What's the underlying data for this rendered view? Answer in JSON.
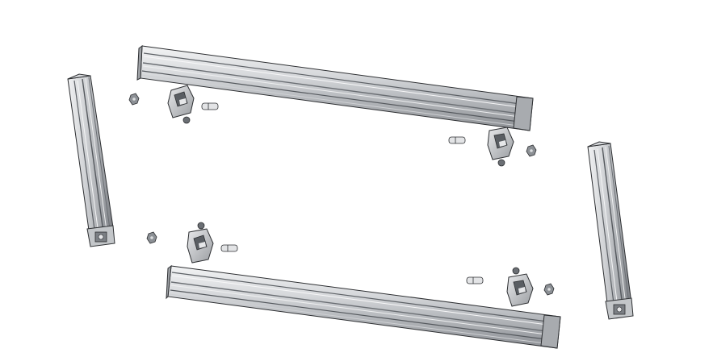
{
  "diagram": {
    "type": "exploded-assembly",
    "palette": {
      "profile_light": "#e3e4e6",
      "profile_mid": "#b9bcc0",
      "profile_dark": "#6f7378",
      "outline": "#2d2f32",
      "hardware_dark": "#4a4d52",
      "hardware_light": "#d5d7da"
    },
    "components": [
      {
        "id": "rail-top",
        "kind": "horizontal-rail"
      },
      {
        "id": "rail-bottom",
        "kind": "horizontal-rail"
      },
      {
        "id": "post-left",
        "kind": "vertical-post"
      },
      {
        "id": "post-right",
        "kind": "vertical-post"
      },
      {
        "id": "bracket-top-left",
        "kind": "corner-bracket"
      },
      {
        "id": "bracket-top-right",
        "kind": "corner-bracket"
      },
      {
        "id": "bracket-bottom-left",
        "kind": "corner-bracket"
      },
      {
        "id": "bracket-bottom-right",
        "kind": "corner-bracket"
      },
      {
        "id": "pin-top-left",
        "kind": "pin"
      },
      {
        "id": "pin-top-right",
        "kind": "pin"
      },
      {
        "id": "pin-bottom-left",
        "kind": "pin"
      },
      {
        "id": "pin-bottom-right",
        "kind": "pin"
      },
      {
        "id": "nut-top-left",
        "kind": "t-nut"
      },
      {
        "id": "nut-top-right",
        "kind": "t-nut"
      },
      {
        "id": "nut-bottom-left",
        "kind": "t-nut"
      },
      {
        "id": "nut-bottom-right",
        "kind": "t-nut"
      }
    ]
  }
}
